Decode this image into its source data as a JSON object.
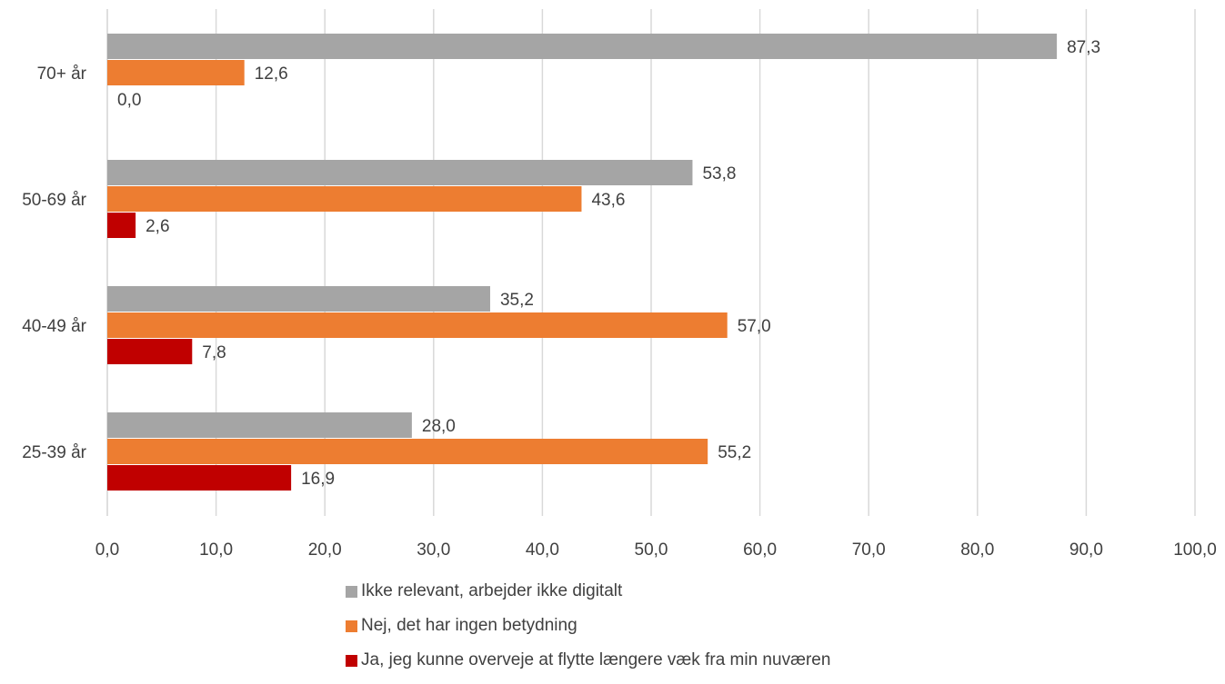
{
  "chart_data": {
    "type": "bar",
    "orientation": "horizontal",
    "categories": [
      "70+ år",
      "50-69 år",
      "40-49 år",
      "25-39 år"
    ],
    "series": [
      {
        "name": "Ikke relevant, arbejder ikke digitalt",
        "color": "#A5A5A5",
        "values": [
          87.3,
          53.8,
          35.2,
          28.0
        ],
        "labels": [
          "87,3",
          "53,8",
          "35,2",
          "28,0"
        ]
      },
      {
        "name": "Nej, det har ingen betydning",
        "color": "#ED7D31",
        "values": [
          12.6,
          43.6,
          57.0,
          55.2
        ],
        "labels": [
          "12,6",
          "43,6",
          "57,0",
          "55,2"
        ]
      },
      {
        "name": "Ja, jeg kunne overveje at flytte længere væk fra min nuværen",
        "color": "#C00000",
        "values": [
          0.0,
          2.6,
          7.8,
          16.9
        ],
        "labels": [
          "0,0",
          "2,6",
          "7,8",
          "16,9"
        ]
      }
    ],
    "xlim": [
      0,
      100
    ],
    "x_ticks": [
      0,
      10,
      20,
      30,
      40,
      50,
      60,
      70,
      80,
      90,
      100
    ],
    "x_tick_labels": [
      "0,0",
      "10,0",
      "20,0",
      "30,0",
      "40,0",
      "50,0",
      "60,0",
      "70,0",
      "80,0",
      "90,0",
      "100,0"
    ],
    "grid": "vertical",
    "legend_position": "bottom"
  }
}
